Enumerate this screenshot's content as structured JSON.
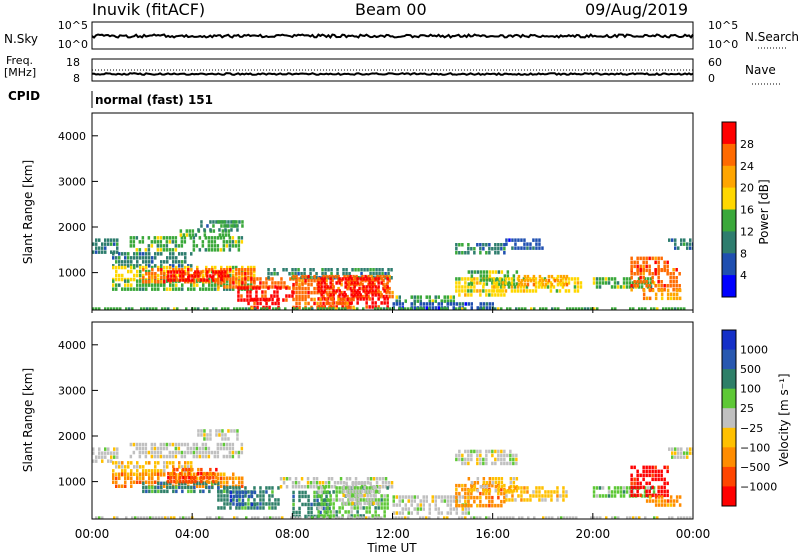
{
  "header": {
    "station": "Inuvik (fitACF)",
    "beam": "Beam 00",
    "date": "09/Aug/2019"
  },
  "top_panels": {
    "nsky": {
      "label": "N.Sky",
      "ticks": [
        "10^5",
        "10^0"
      ]
    },
    "nsearch": {
      "label": "N.Search",
      "ticks": [
        "10^5",
        "10^0"
      ]
    },
    "freq": {
      "label_line1": "Freq.",
      "label_line2": "[MHz]",
      "ticks": [
        "18",
        "8"
      ]
    },
    "nave": {
      "label": "Nave",
      "ticks": [
        "60",
        "0"
      ]
    },
    "cpid": {
      "label": "CPID",
      "mode": "normal (fast) 151"
    }
  },
  "x_axis": {
    "label": "Time UT",
    "ticks": [
      "00:00",
      "04:00",
      "08:00",
      "12:00",
      "16:00",
      "20:00",
      "00:00"
    ]
  },
  "y_axis": {
    "label": "Slant Range [km]",
    "ticks": [
      "1000",
      "2000",
      "3000",
      "4000"
    ]
  },
  "power_colorbar": {
    "label": "Power [dB]",
    "ticks": [
      "4",
      "8",
      "12",
      "16",
      "20",
      "24",
      "28"
    ],
    "colors": [
      "#0000ff",
      "#1f4fb0",
      "#2e7d6e",
      "#3aa83a",
      "#ffd700",
      "#ffa500",
      "#ff6a00",
      "#ff0000"
    ]
  },
  "velocity_colorbar": {
    "label": "Velocity [m s⁻¹]",
    "ticks": [
      "1000",
      "500",
      "100",
      "25",
      "−25",
      "−100",
      "−500",
      "−1000"
    ],
    "colors": [
      "#1530c8",
      "#2858b0",
      "#2e7f68",
      "#5ec836",
      "#c0c0c0",
      "#ffc000",
      "#ff8c00",
      "#ff4500",
      "#ff0000"
    ]
  },
  "chart_data": {
    "type": "heatmap",
    "x_unit": "hours UT",
    "xlim": [
      0,
      24
    ],
    "ylim": [
      180,
      4500
    ],
    "power_patches": [
      {
        "x": [
          0.0,
          1.0
        ],
        "y": [
          1450,
          1750
        ],
        "c": 2
      },
      {
        "x": [
          1.5,
          6.0
        ],
        "y": [
          1500,
          1800
        ],
        "c": 3
      },
      {
        "x": [
          3.5,
          5.5
        ],
        "y": [
          1800,
          1950
        ],
        "c": 3
      },
      {
        "x": [
          4.2,
          5.8
        ],
        "y": [
          1950,
          2150
        ],
        "c": 2
      },
      {
        "x": [
          5.0,
          6.0
        ],
        "y": [
          2000,
          2150
        ],
        "c": 3
      },
      {
        "x": [
          0.8,
          4.0
        ],
        "y": [
          1150,
          1450
        ],
        "c": 2
      },
      {
        "x": [
          0.8,
          6.5
        ],
        "y": [
          850,
          1150
        ],
        "c": 4
      },
      {
        "x": [
          0.8,
          6.5
        ],
        "y": [
          650,
          850
        ],
        "c": 3
      },
      {
        "x": [
          2.0,
          6.5
        ],
        "y": [
          800,
          1100
        ],
        "c": 6
      },
      {
        "x": [
          3.0,
          5.5
        ],
        "y": [
          850,
          1050
        ],
        "c": 7
      },
      {
        "x": [
          5.0,
          8.5
        ],
        "y": [
          650,
          900
        ],
        "c": 6
      },
      {
        "x": [
          5.8,
          8.0
        ],
        "y": [
          400,
          700
        ],
        "c": 7
      },
      {
        "x": [
          6.2,
          7.5
        ],
        "y": [
          250,
          450
        ],
        "c": 7
      },
      {
        "x": [
          7.0,
          12.0
        ],
        "y": [
          850,
          1100
        ],
        "c": 2
      },
      {
        "x": [
          8.0,
          12.0
        ],
        "y": [
          450,
          950
        ],
        "c": 6
      },
      {
        "x": [
          9.0,
          11.8
        ],
        "y": [
          280,
          900
        ],
        "c": 7
      },
      {
        "x": [
          8.0,
          10.5
        ],
        "y": [
          250,
          450
        ],
        "c": 6
      },
      {
        "x": [
          12.0,
          14.5
        ],
        "y": [
          350,
          500
        ],
        "c": 3
      },
      {
        "x": [
          12.0,
          16.0
        ],
        "y": [
          250,
          350
        ],
        "c": 1
      },
      {
        "x": [
          14.5,
          16.5
        ],
        "y": [
          500,
          900
        ],
        "c": 4
      },
      {
        "x": [
          15.0,
          17.0
        ],
        "y": [
          700,
          1050
        ],
        "c": 3
      },
      {
        "x": [
          16.0,
          19.5
        ],
        "y": [
          600,
          900
        ],
        "c": 4
      },
      {
        "x": [
          17.0,
          19.0
        ],
        "y": [
          750,
          950
        ],
        "c": 5
      },
      {
        "x": [
          14.5,
          16.5
        ],
        "y": [
          1400,
          1650
        ],
        "c": 2
      },
      {
        "x": [
          16.5,
          18.0
        ],
        "y": [
          1500,
          1750
        ],
        "c": 1
      },
      {
        "x": [
          20.0,
          22.5
        ],
        "y": [
          650,
          900
        ],
        "c": 3
      },
      {
        "x": [
          21.5,
          23.0
        ],
        "y": [
          1000,
          1350
        ],
        "c": 6
      },
      {
        "x": [
          21.5,
          23.5
        ],
        "y": [
          650,
          1100
        ],
        "c": 6
      },
      {
        "x": [
          22.0,
          23.5
        ],
        "y": [
          450,
          650
        ],
        "c": 5
      },
      {
        "x": [
          23.0,
          24.0
        ],
        "y": [
          1500,
          1750
        ],
        "c": 2
      },
      {
        "x": [
          0.0,
          24.0
        ],
        "y": [
          190,
          240
        ],
        "c": 3
      }
    ],
    "velocity_patches": [
      {
        "x": [
          0.0,
          1.0
        ],
        "y": [
          1450,
          1750
        ],
        "c": 4
      },
      {
        "x": [
          1.5,
          6.0
        ],
        "y": [
          1500,
          1850
        ],
        "c": 4
      },
      {
        "x": [
          4.2,
          5.8
        ],
        "y": [
          1950,
          2150
        ],
        "c": 4
      },
      {
        "x": [
          0.8,
          4.0
        ],
        "y": [
          1150,
          1450
        ],
        "c": 5
      },
      {
        "x": [
          0.8,
          6.0
        ],
        "y": [
          900,
          1200
        ],
        "c": 6
      },
      {
        "x": [
          2.0,
          5.5
        ],
        "y": [
          750,
          1000
        ],
        "c": 2
      },
      {
        "x": [
          3.0,
          5.0
        ],
        "y": [
          950,
          1300
        ],
        "c": 7
      },
      {
        "x": [
          5.0,
          7.5
        ],
        "y": [
          400,
          900
        ],
        "c": 2
      },
      {
        "x": [
          5.5,
          6.5
        ],
        "y": [
          450,
          800
        ],
        "c": 1
      },
      {
        "x": [
          7.5,
          12.0
        ],
        "y": [
          850,
          1100
        ],
        "c": 4
      },
      {
        "x": [
          8.0,
          9.5
        ],
        "y": [
          250,
          800
        ],
        "c": 2
      },
      {
        "x": [
          9.0,
          11.8
        ],
        "y": [
          280,
          900
        ],
        "c": 3
      },
      {
        "x": [
          10.0,
          11.5
        ],
        "y": [
          500,
          1000
        ],
        "c": 4
      },
      {
        "x": [
          12.0,
          15.0
        ],
        "y": [
          300,
          700
        ],
        "c": 4
      },
      {
        "x": [
          14.5,
          16.5
        ],
        "y": [
          500,
          950
        ],
        "c": 6
      },
      {
        "x": [
          15.0,
          17.0
        ],
        "y": [
          800,
          1100
        ],
        "c": 5
      },
      {
        "x": [
          16.5,
          19.0
        ],
        "y": [
          600,
          900
        ],
        "c": 5
      },
      {
        "x": [
          14.5,
          17.0
        ],
        "y": [
          1400,
          1700
        ],
        "c": 4
      },
      {
        "x": [
          20.0,
          22.5
        ],
        "y": [
          650,
          900
        ],
        "c": 3
      },
      {
        "x": [
          21.5,
          23.0
        ],
        "y": [
          700,
          1350
        ],
        "c": 8
      },
      {
        "x": [
          22.0,
          23.5
        ],
        "y": [
          450,
          700
        ],
        "c": 6
      },
      {
        "x": [
          23.0,
          24.0
        ],
        "y": [
          1500,
          1750
        ],
        "c": 4
      },
      {
        "x": [
          0.0,
          24.0
        ],
        "y": [
          190,
          240
        ],
        "c": 4
      }
    ]
  }
}
